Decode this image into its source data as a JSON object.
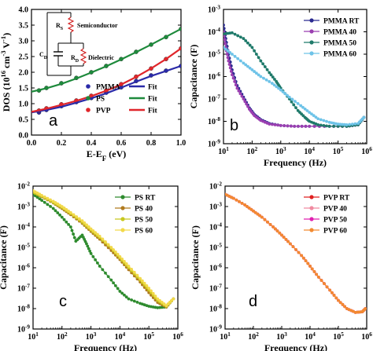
{
  "chart_data": [
    {
      "panel": "a",
      "type": "scatter",
      "xlabel": "E-EF (eV)",
      "ylabel": "DOS (10^16 cm^-3 V^-1)",
      "xlim": [
        0.0,
        1.0
      ],
      "ylim": [
        0.0,
        4.0
      ],
      "xticks": [
        "0.0",
        "0.2",
        "0.4",
        "0.6",
        "0.8",
        "1.0"
      ],
      "yticks": [
        "0.0",
        "0.5",
        "1.0",
        "1.5",
        "2.0",
        "2.5",
        "3.0",
        "3.5",
        "4.0"
      ],
      "x_log": false,
      "y_log": false,
      "legend_placement": "bottom-center",
      "inset_labels": [
        "R_S",
        "Semiconductor",
        "C_D",
        "R_D",
        "Dielectric"
      ],
      "series": [
        {
          "name": "PMMA",
          "color": "#2a2aa8",
          "marker": "circle",
          "x": [
            0.05,
            0.1,
            0.2,
            0.3,
            0.4,
            0.5,
            0.6,
            0.7,
            0.8,
            0.9,
            1.0
          ],
          "y": [
            0.72,
            0.8,
            0.92,
            1.05,
            1.18,
            1.35,
            1.52,
            1.72,
            1.9,
            2.05,
            2.2
          ]
        },
        {
          "name": "PS",
          "color": "#1e8a3c",
          "marker": "circle",
          "x": [
            0.05,
            0.1,
            0.2,
            0.3,
            0.4,
            0.5,
            0.6,
            0.7,
            0.8,
            0.9,
            1.0
          ],
          "y": [
            1.42,
            1.5,
            1.65,
            1.82,
            2.0,
            2.2,
            2.42,
            2.65,
            2.88,
            3.12,
            3.38
          ]
        },
        {
          "name": "PVP",
          "color": "#e0262b",
          "marker": "circle",
          "x": [
            0.05,
            0.1,
            0.2,
            0.3,
            0.4,
            0.5,
            0.6,
            0.7,
            0.8,
            0.9,
            1.0
          ],
          "y": [
            0.78,
            0.85,
            0.98,
            1.1,
            1.25,
            1.42,
            1.62,
            1.86,
            2.12,
            2.42,
            2.76
          ]
        },
        {
          "name": "Fit",
          "color": "#2a2aa8",
          "line": true,
          "x": [
            0.0,
            0.1,
            0.2,
            0.3,
            0.4,
            0.5,
            0.6,
            0.7,
            0.8,
            0.9,
            1.0
          ],
          "y": [
            0.72,
            0.8,
            0.9,
            1.03,
            1.17,
            1.33,
            1.51,
            1.7,
            1.88,
            2.04,
            2.2
          ]
        },
        {
          "name": "Fit",
          "color": "#1e8a3c",
          "line": true,
          "x": [
            0.0,
            0.1,
            0.2,
            0.3,
            0.4,
            0.5,
            0.6,
            0.7,
            0.8,
            0.9,
            1.0
          ],
          "y": [
            1.38,
            1.49,
            1.63,
            1.8,
            1.99,
            2.19,
            2.41,
            2.64,
            2.88,
            3.13,
            3.38
          ]
        },
        {
          "name": "Fit",
          "color": "#e0262b",
          "line": true,
          "x": [
            0.0,
            0.1,
            0.2,
            0.3,
            0.4,
            0.5,
            0.6,
            0.7,
            0.8,
            0.9,
            1.0
          ],
          "y": [
            0.74,
            0.84,
            0.96,
            1.09,
            1.24,
            1.41,
            1.61,
            1.85,
            2.12,
            2.42,
            2.76
          ]
        }
      ]
    },
    {
      "panel": "b",
      "type": "scatter",
      "xlabel": "Frequency (Hz)",
      "ylabel": "Capacitance (F)",
      "xlim": [
        10,
        1000000
      ],
      "ylim": [
        1e-09,
        0.001
      ],
      "x_log": true,
      "y_log": true,
      "xticks": [
        "10^1",
        "10^2",
        "10^3",
        "10^4",
        "10^5",
        "10^6"
      ],
      "yticks": [
        "10^-9",
        "10^-8",
        "10^-7",
        "10^-6",
        "10^-5",
        "10^-4",
        "10^-3"
      ],
      "legend_placement": "top-right",
      "series": [
        {
          "name": "PMMA RT",
          "color": "#2a2a90",
          "marker": "circle",
          "x": [
            10,
            12,
            15,
            20,
            30,
            50,
            80,
            120,
            200,
            400,
            1000,
            3000,
            10000,
            50000,
            200000,
            500000,
            800000
          ],
          "y": [
            0.0002,
            5e-05,
            1e-05,
            2e-06,
            4e-07,
            1.2e-07,
            4e-08,
            2e-08,
            1.2e-08,
            8e-09,
            6.5e-09,
            6e-09,
            6e-09,
            6e-09,
            6e-09,
            7e-09,
            1.5e-08
          ]
        },
        {
          "name": "PMMA 40",
          "color": "#9a3fb0",
          "marker": "circle",
          "x": [
            10,
            12,
            15,
            20,
            30,
            50,
            80,
            120,
            200,
            400,
            1000,
            3000,
            10000,
            50000,
            200000,
            500000,
            800000
          ],
          "y": [
            0.0001,
            2e-05,
            5e-06,
            1.2e-06,
            3e-07,
            1e-07,
            3.5e-08,
            1.8e-08,
            1.1e-08,
            7.5e-09,
            6.5e-09,
            6e-09,
            6e-09,
            6e-09,
            6e-09,
            7e-09,
            1.5e-08
          ]
        },
        {
          "name": "PMMA 50",
          "color": "#1f7a6a",
          "marker": "circle",
          "x": [
            10,
            20,
            50,
            100,
            200,
            400,
            700,
            1000,
            2000,
            4000,
            7000,
            10000,
            20000,
            50000,
            200000,
            500000,
            800000
          ],
          "y": [
            8e-05,
            9e-05,
            5e-05,
            2e-05,
            5e-06,
            1.5e-06,
            6e-07,
            3e-07,
            1e-07,
            3e-08,
            1.5e-08,
            1e-08,
            7e-09,
            6e-09,
            6e-09,
            7e-09,
            1.5e-08
          ]
        },
        {
          "name": "PMMA 60",
          "color": "#6ec3e8",
          "marker": "circle",
          "x": [
            10,
            20,
            50,
            100,
            200,
            500,
            1000,
            2000,
            5000,
            10000,
            20000,
            50000,
            100000,
            200000,
            500000,
            800000
          ],
          "y": [
            2e-05,
            1e-05,
            4e-06,
            2e-06,
            1e-06,
            5e-07,
            2.5e-07,
            1.2e-07,
            5e-08,
            2.5e-08,
            1.3e-08,
            9e-09,
            7.5e-09,
            7e-09,
            8e-09,
            1.5e-08
          ]
        }
      ]
    },
    {
      "panel": "c",
      "type": "scatter",
      "xlabel": "Frequency (Hz)",
      "ylabel": "Capacitance (F)",
      "xlim": [
        10,
        1000000
      ],
      "ylim": [
        1e-09,
        0.01
      ],
      "x_log": true,
      "y_log": true,
      "xticks": [
        "10^1",
        "10^2",
        "10^3",
        "10^4",
        "10^5",
        "10^6"
      ],
      "yticks": [
        "10^-9",
        "10^-8",
        "10^-7",
        "10^-6",
        "10^-5",
        "10^-4",
        "10^-3",
        "10^-2"
      ],
      "legend_placement": "top-right",
      "series": [
        {
          "name": "PS RT",
          "color": "#2e8b2e",
          "marker": "circle",
          "x": [
            10,
            20,
            50,
            100,
            200,
            300,
            500,
            700,
            1000,
            2000,
            5000,
            10000,
            20000,
            50000,
            100000,
            200000,
            400000,
            700000
          ],
          "y": [
            0.004,
            0.002,
            0.0008,
            0.0003,
            0.0001,
            2e-05,
            4e-05,
            1.5e-05,
            5e-06,
            1.2e-06,
            2.5e-07,
            7e-08,
            3e-08,
            1.8e-08,
            1.3e-08,
            1.1e-08,
            1.2e-08,
            3e-08
          ]
        },
        {
          "name": "PS 40",
          "color": "#b07a1e",
          "marker": "circle",
          "x": [
            10,
            20,
            50,
            100,
            200,
            500,
            1000,
            2000,
            5000,
            10000,
            20000,
            50000,
            100000,
            200000,
            400000,
            700000
          ],
          "y": [
            0.005,
            0.003,
            0.0015,
            0.0008,
            0.0004,
            0.00015,
            6e-05,
            2.5e-05,
            7e-06,
            2.5e-06,
            8e-07,
            2e-07,
            6e-08,
            2e-08,
            1.2e-08,
            3e-08
          ]
        },
        {
          "name": "PS 50",
          "color": "#c8c81e",
          "marker": "circle",
          "x": [
            10,
            20,
            50,
            100,
            200,
            500,
            1000,
            2000,
            5000,
            10000,
            20000,
            50000,
            100000,
            200000,
            400000,
            700000
          ],
          "y": [
            0.005,
            0.0032,
            0.0016,
            0.0009,
            0.00045,
            0.00017,
            7e-05,
            3e-05,
            9e-06,
            3e-06,
            1e-06,
            2.5e-07,
            8e-08,
            2.5e-08,
            1.3e-08,
            3e-08
          ]
        },
        {
          "name": "PS 60",
          "color": "#f2d94a",
          "marker": "circle",
          "x": [
            10,
            20,
            50,
            100,
            200,
            500,
            1000,
            2000,
            5000,
            10000,
            20000,
            50000,
            100000,
            200000,
            400000,
            700000
          ],
          "y": [
            0.006,
            0.0035,
            0.0018,
            0.001,
            0.0005,
            0.0002,
            8e-05,
            3.5e-05,
            1e-05,
            3.5e-06,
            1.2e-06,
            3e-07,
            1e-07,
            3e-08,
            1.4e-08,
            3e-08
          ]
        }
      ]
    },
    {
      "panel": "d",
      "type": "scatter",
      "xlabel": "Frequency (Hz)",
      "ylabel": "Capacitance (F)",
      "xlim": [
        10,
        1000000
      ],
      "ylim": [
        1e-09,
        0.01
      ],
      "x_log": true,
      "y_log": true,
      "xticks": [
        "10^1",
        "10^2",
        "10^3",
        "10^4",
        "10^5",
        "10^6"
      ],
      "yticks": [
        "10^-9",
        "10^-8",
        "10^-7",
        "10^-6",
        "10^-5",
        "10^-4",
        "10^-3",
        "10^-2"
      ],
      "legend_placement": "top-right",
      "series": [
        {
          "name": "PVP RT",
          "color": "#e02020",
          "marker": "circle",
          "x": [
            10,
            20,
            50,
            100,
            200,
            500,
            1000,
            2000,
            5000,
            10000,
            20000,
            50000,
            100000,
            200000,
            400000,
            700000,
            900000
          ],
          "y": [
            0.004,
            0.0025,
            0.0012,
            0.0006,
            0.0003,
            0.0001,
            4e-05,
            1.5e-05,
            4e-06,
            1.2e-06,
            3.5e-07,
            8e-08,
            2.5e-08,
            1e-08,
            6.5e-09,
            7e-09,
            1e-08
          ]
        },
        {
          "name": "PVP 40",
          "color": "#f08aa0",
          "marker": "circle",
          "x": [
            10,
            20,
            50,
            100,
            200,
            500,
            1000,
            2000,
            5000,
            10000,
            20000,
            50000,
            100000,
            200000,
            400000,
            700000,
            900000
          ],
          "y": [
            0.004,
            0.0025,
            0.0012,
            0.0006,
            0.0003,
            0.0001,
            4e-05,
            1.5e-05,
            4e-06,
            1.2e-06,
            3.5e-07,
            8e-08,
            2.5e-08,
            1e-08,
            6.5e-09,
            7e-09,
            1e-08
          ]
        },
        {
          "name": "PVP 50",
          "color": "#e020b0",
          "marker": "circle",
          "x": [
            10,
            20,
            50,
            100,
            200,
            500,
            1000,
            2000,
            5000,
            10000,
            20000,
            50000,
            100000,
            200000,
            400000,
            700000,
            900000
          ],
          "y": [
            0.004,
            0.0025,
            0.0012,
            0.0006,
            0.0003,
            0.0001,
            4e-05,
            1.5e-05,
            4e-06,
            1.2e-06,
            3.5e-07,
            8e-08,
            2.5e-08,
            1e-08,
            6.5e-09,
            7e-09,
            1e-08
          ]
        },
        {
          "name": "PVP 60",
          "color": "#f28a30",
          "marker": "circle",
          "x": [
            10,
            20,
            50,
            100,
            200,
            500,
            1000,
            2000,
            5000,
            10000,
            20000,
            50000,
            100000,
            200000,
            400000,
            700000,
            900000
          ],
          "y": [
            0.004,
            0.0025,
            0.0012,
            0.0006,
            0.0003,
            0.0001,
            4e-05,
            1.5e-05,
            4e-06,
            1.2e-06,
            3.5e-07,
            8e-08,
            2.5e-08,
            1e-08,
            6.5e-09,
            7e-09,
            1e-08
          ]
        }
      ]
    }
  ]
}
